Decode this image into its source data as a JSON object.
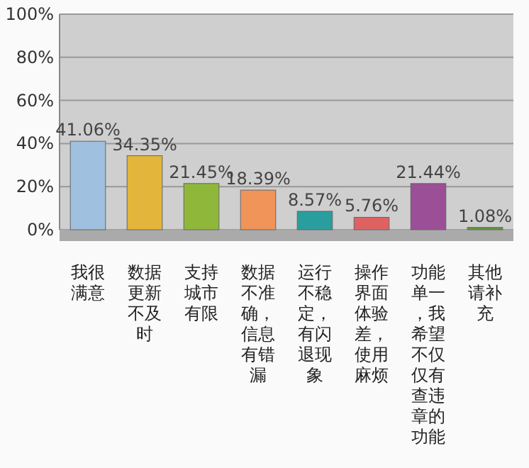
{
  "chart_data": {
    "type": "bar",
    "categories": [
      "我很满意",
      "数据更新不及时",
      "支持城市有限",
      "数据不准确，信息有错漏",
      "运行不稳定，有闪退现象",
      "操作界面体验差，使用麻烦",
      "功能单一，我希望不仅仅有查违章的功能",
      "其他请补充"
    ],
    "values": [
      41.06,
      34.35,
      21.45,
      18.39,
      8.57,
      5.76,
      21.44,
      1.08
    ],
    "value_labels": [
      "41.06%",
      "34.35%",
      "21.45%",
      "18.39%",
      "8.57%",
      "5.76%",
      "21.44%",
      "1.08%"
    ],
    "colors": [
      "#9fc0de",
      "#e3b53a",
      "#8fb83a",
      "#f0945a",
      "#2a9e9e",
      "#de6262",
      "#9a4f96",
      "#5f9a3a"
    ],
    "ylim": [
      0,
      100
    ],
    "yticks": [
      {
        "value": 0,
        "label": "0%"
      },
      {
        "value": 20,
        "label": "20%"
      },
      {
        "value": 40,
        "label": "40%"
      },
      {
        "value": 60,
        "label": "60%"
      },
      {
        "value": 80,
        "label": "80%"
      },
      {
        "value": 100,
        "label": "100%"
      }
    ],
    "grid": "y"
  }
}
